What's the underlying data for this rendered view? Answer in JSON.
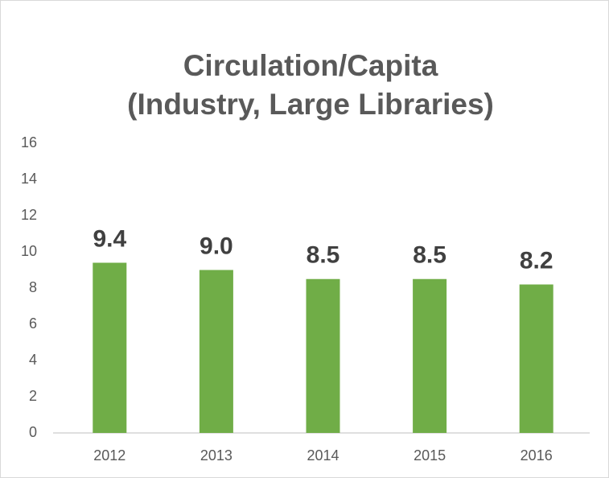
{
  "chart_data": {
    "type": "bar",
    "title": [
      "Circulation/Capita",
      "(Industry, Large Libraries)"
    ],
    "categories": [
      "2012",
      "2013",
      "2014",
      "2015",
      "2016"
    ],
    "values": [
      9.4,
      9.0,
      8.5,
      8.5,
      8.2
    ],
    "value_labels": [
      "9.4",
      "9.0",
      "8.5",
      "8.5",
      "8.2"
    ],
    "color": "#70ad47",
    "ylim": [
      0,
      16
    ],
    "yticks": [
      0,
      2,
      4,
      6,
      8,
      10,
      12,
      14,
      16
    ],
    "grid": false
  }
}
